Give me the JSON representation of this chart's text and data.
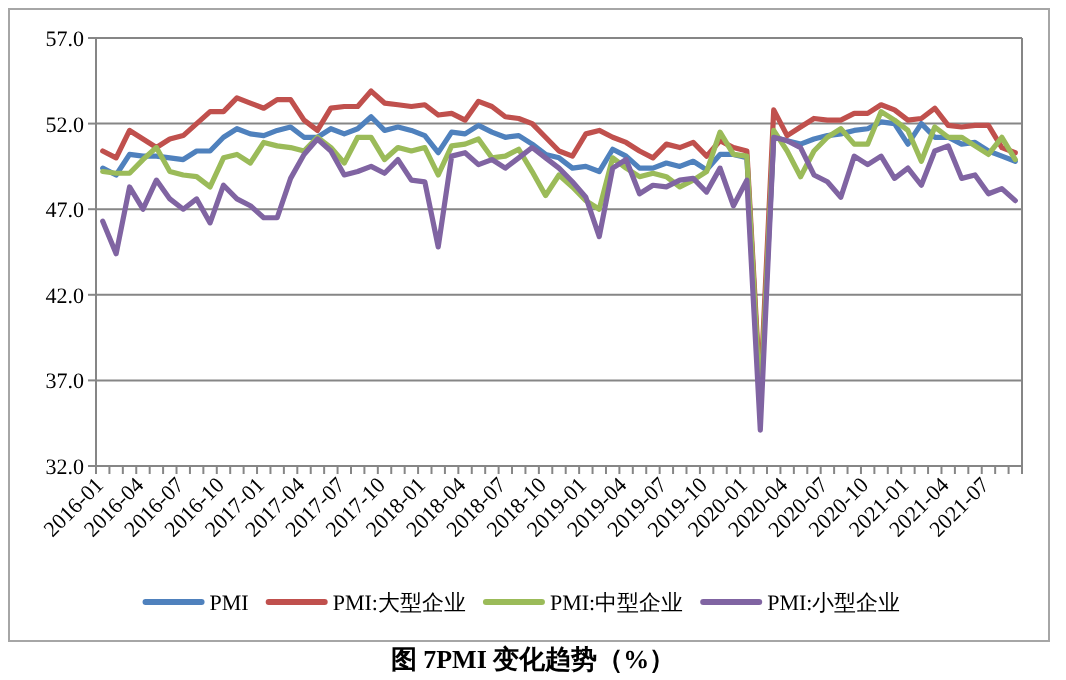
{
  "chart_data": {
    "type": "line",
    "title": "图 7PMI 变化趋势（%）",
    "categories": [
      "2016-01",
      null,
      null,
      "2016-04",
      null,
      null,
      "2016-07",
      null,
      null,
      "2016-10",
      null,
      null,
      "2017-01",
      null,
      null,
      "2017-04",
      null,
      null,
      "2017-07",
      null,
      null,
      "2017-10",
      null,
      null,
      "2018-01",
      null,
      null,
      "2018-04",
      null,
      null,
      "2018-07",
      null,
      null,
      "2018-10",
      null,
      null,
      "2019-01",
      null,
      null,
      "2019-04",
      null,
      null,
      "2019-07",
      null,
      null,
      "2019-10",
      null,
      null,
      "2020-01",
      null,
      null,
      "2020-04",
      null,
      null,
      "2020-07",
      null,
      null,
      "2020-10",
      null,
      null,
      "2021-01",
      null,
      null,
      "2021-04",
      null,
      null,
      "2021-07",
      null,
      null
    ],
    "ylim": [
      32,
      57
    ],
    "yticks": [
      {
        "value": 32,
        "label": "32.0"
      },
      {
        "value": 37,
        "label": "37.0"
      },
      {
        "value": 42,
        "label": "42.0"
      },
      {
        "value": 47,
        "label": "47.0"
      },
      {
        "value": 52,
        "label": "52.0"
      },
      {
        "value": 57,
        "label": "57.0"
      }
    ],
    "grid": "y",
    "legend": "bottom",
    "series": [
      {
        "name": "PMI",
        "color": "#4f81bd",
        "values": [
          49.4,
          49.0,
          50.2,
          50.1,
          50.1,
          50.0,
          49.9,
          50.4,
          50.4,
          51.2,
          51.7,
          51.4,
          51.3,
          51.6,
          51.8,
          51.2,
          51.2,
          51.7,
          51.4,
          51.7,
          52.4,
          51.6,
          51.8,
          51.6,
          51.3,
          50.3,
          51.5,
          51.4,
          51.9,
          51.5,
          51.2,
          51.3,
          50.8,
          50.2,
          50.0,
          49.4,
          49.5,
          49.2,
          50.5,
          50.1,
          49.4,
          49.4,
          49.7,
          49.5,
          49.8,
          49.3,
          50.2,
          50.2,
          50.0,
          35.7,
          51.2,
          51.0,
          50.8,
          51.1,
          51.3,
          51.4,
          51.6,
          51.7,
          52.1,
          52.0,
          50.8,
          52.0,
          51.2,
          51.2,
          50.8,
          50.9,
          50.4,
          50.1,
          49.8
        ]
      },
      {
        "name": "PMI:大型企业",
        "color": "#c0504d",
        "values": [
          50.4,
          50.0,
          51.6,
          51.1,
          50.6,
          51.1,
          51.3,
          52.0,
          52.7,
          52.7,
          53.5,
          53.2,
          52.9,
          53.4,
          53.4,
          52.2,
          51.6,
          52.9,
          53.0,
          53.0,
          53.9,
          53.2,
          53.1,
          53.0,
          53.1,
          52.5,
          52.6,
          52.2,
          53.3,
          53.0,
          52.4,
          52.3,
          52.0,
          51.2,
          50.4,
          50.1,
          51.4,
          51.6,
          51.2,
          50.9,
          50.4,
          50.0,
          50.8,
          50.6,
          50.9,
          50.1,
          51.0,
          50.6,
          50.4,
          36.2,
          52.8,
          51.3,
          51.8,
          52.3,
          52.2,
          52.2,
          52.6,
          52.6,
          53.1,
          52.8,
          52.2,
          52.3,
          52.9,
          51.9,
          51.8,
          51.9,
          51.9,
          50.6,
          50.3
        ]
      },
      {
        "name": "PMI:中型企业",
        "color": "#9bbb59",
        "values": [
          49.2,
          49.1,
          49.1,
          49.9,
          50.6,
          49.2,
          49.0,
          48.9,
          48.3,
          50.0,
          50.2,
          49.7,
          50.9,
          50.7,
          50.6,
          50.4,
          51.2,
          50.6,
          49.7,
          51.2,
          51.2,
          49.9,
          50.6,
          50.4,
          50.6,
          49.0,
          50.7,
          50.8,
          51.1,
          50.0,
          50.1,
          50.5,
          49.2,
          47.8,
          49.0,
          48.3,
          47.5,
          47.0,
          50.0,
          49.4,
          48.9,
          49.1,
          48.9,
          48.3,
          48.7,
          49.2,
          51.5,
          50.2,
          50.1,
          35.5,
          51.6,
          50.4,
          48.9,
          50.4,
          51.2,
          51.7,
          50.8,
          50.8,
          52.7,
          52.2,
          51.6,
          49.8,
          51.8,
          51.2,
          51.2,
          50.7,
          50.2,
          51.2,
          49.9
        ]
      },
      {
        "name": "PMI:小型企业",
        "color": "#8064a2",
        "values": [
          46.3,
          44.4,
          48.3,
          47.0,
          48.7,
          47.6,
          47.0,
          47.6,
          46.2,
          48.4,
          47.6,
          47.2,
          46.5,
          46.5,
          48.8,
          50.2,
          51.1,
          50.4,
          49.0,
          49.2,
          49.5,
          49.1,
          49.9,
          48.7,
          48.6,
          44.8,
          50.1,
          50.3,
          49.6,
          49.9,
          49.4,
          50.0,
          50.6,
          50.0,
          49.4,
          48.6,
          47.7,
          45.4,
          49.4,
          49.9,
          47.9,
          48.4,
          48.3,
          48.7,
          48.8,
          48.0,
          49.4,
          47.2,
          48.7,
          34.1,
          51.2,
          51.0,
          50.6,
          49.0,
          48.6,
          47.7,
          50.1,
          49.6,
          50.1,
          48.8,
          49.4,
          48.4,
          50.4,
          50.7,
          48.8,
          49.0,
          47.9,
          48.2,
          47.5
        ]
      }
    ]
  }
}
